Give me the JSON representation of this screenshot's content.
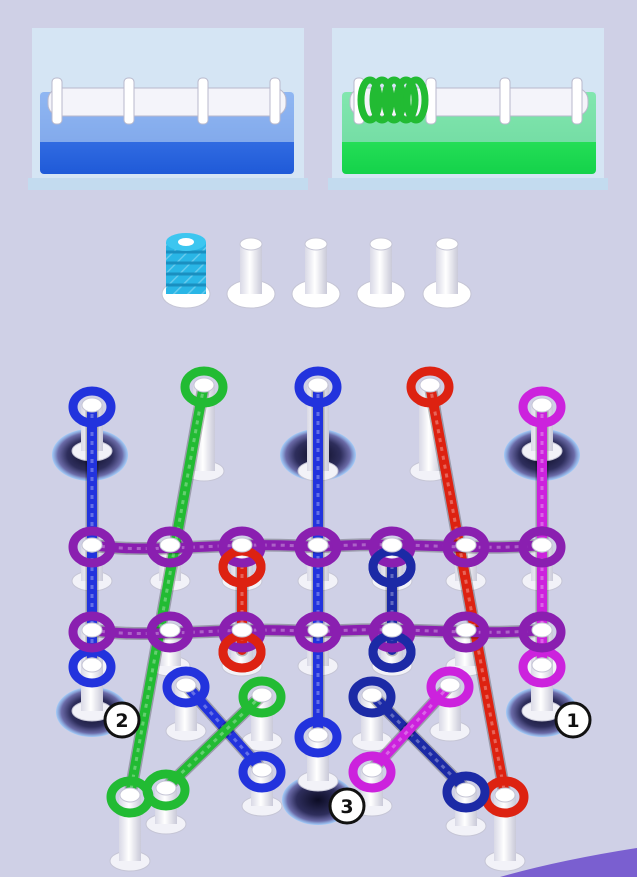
{
  "screen": "rope-untangle-puzzle",
  "colors": {
    "background": "#cfd0e6",
    "blue": "#2233dd",
    "navy": "#1c2aa6",
    "green": "#22bb33",
    "red": "#dd2211",
    "magenta": "#cc22dd",
    "purple": "#8a1fb0",
    "cyan": "#29b6e6"
  },
  "bins": [
    {
      "color": "blue",
      "fill": 0
    },
    {
      "color": "green",
      "fill": 0.25
    }
  ],
  "collected_pegs": [
    {
      "state": "filled",
      "color": "cyan"
    },
    {
      "state": "empty"
    },
    {
      "state": "empty"
    },
    {
      "state": "empty"
    },
    {
      "state": "empty"
    }
  ],
  "holes": [
    {
      "label": "2"
    },
    {
      "label": "1"
    },
    {
      "label": "3"
    }
  ],
  "ropes": [
    {
      "color": "blue"
    },
    {
      "color": "green"
    },
    {
      "color": "blue"
    },
    {
      "color": "red"
    },
    {
      "color": "magenta"
    },
    {
      "color": "purple"
    },
    {
      "color": "purple"
    },
    {
      "color": "red"
    },
    {
      "color": "navy"
    },
    {
      "color": "blue"
    },
    {
      "color": "green"
    },
    {
      "color": "navy"
    },
    {
      "color": "magenta"
    }
  ]
}
